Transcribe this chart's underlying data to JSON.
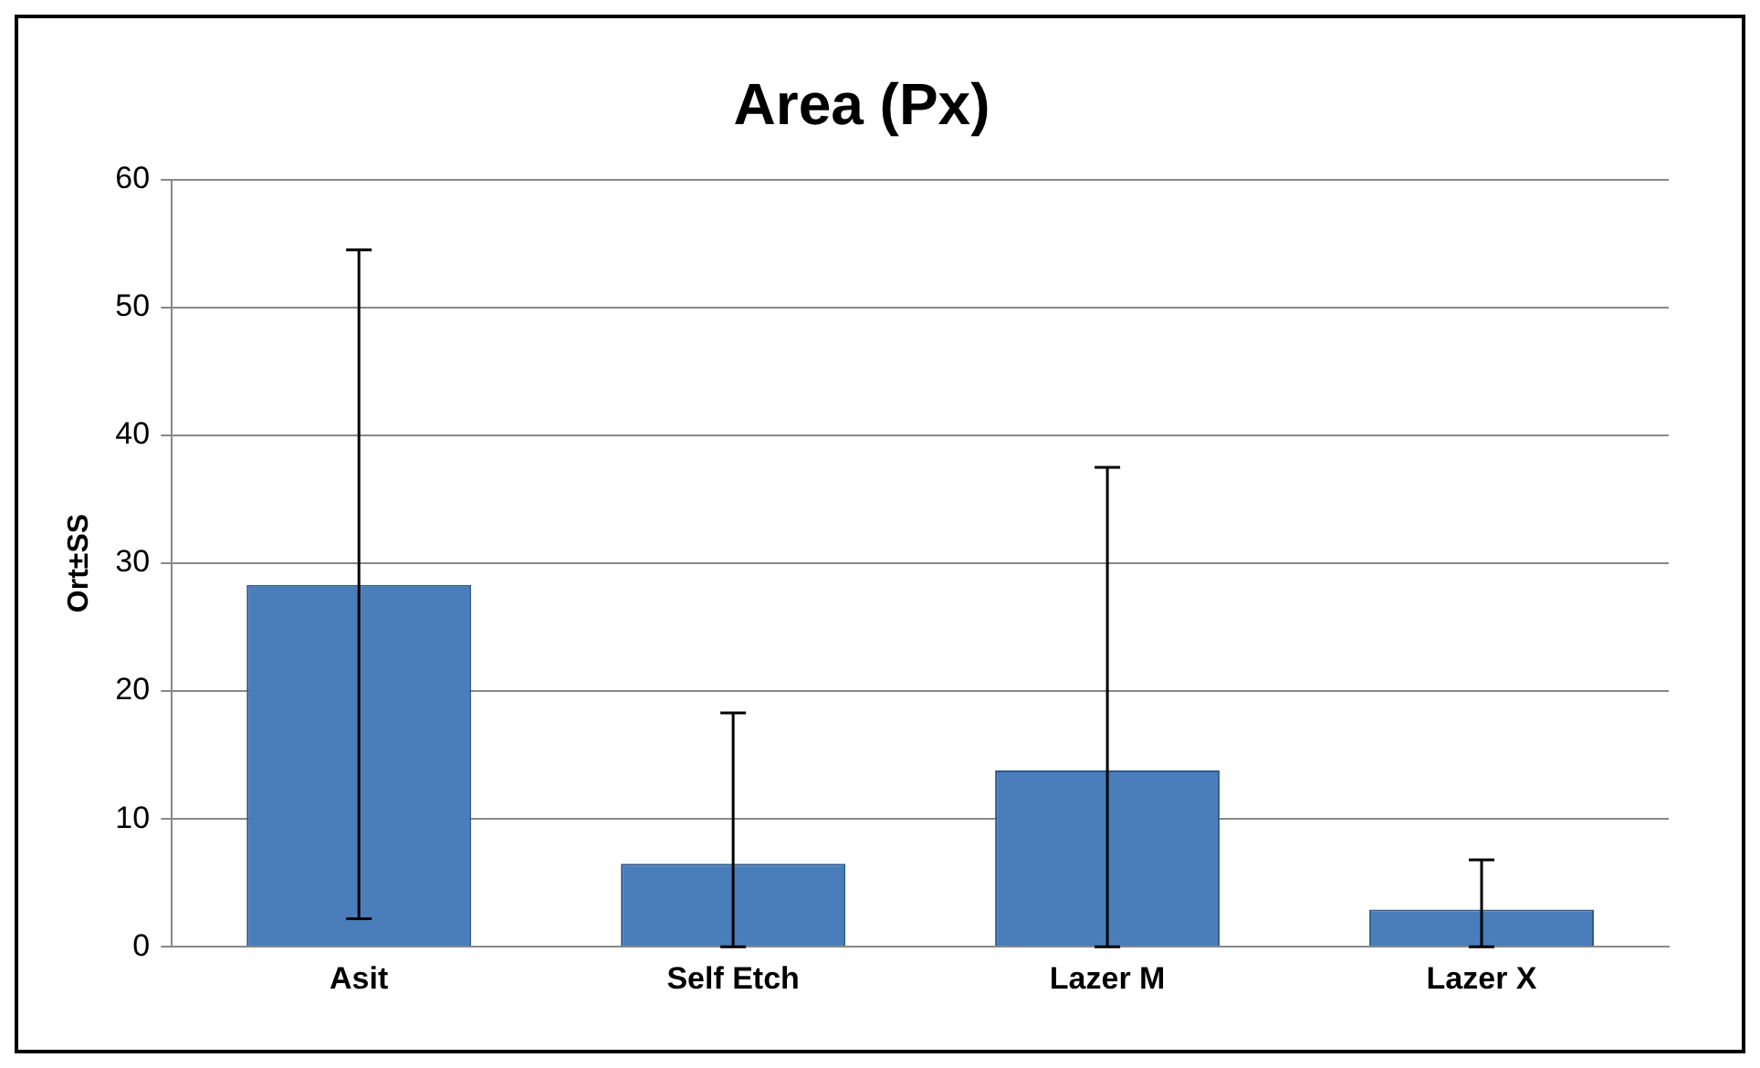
{
  "chart_data": {
    "type": "bar",
    "title": "Area (Px)",
    "ylabel": "Ort±SS",
    "categories": [
      "Asit",
      "Self Etch",
      "Lazer M",
      "Lazer X"
    ],
    "values": [
      28.3,
      6.5,
      13.8,
      2.9
    ],
    "color": "#4a7ebb",
    "errors": [
      [
        2.2,
        54.5
      ],
      [
        0,
        18.3
      ],
      [
        0,
        37.5
      ],
      [
        0,
        6.8
      ]
    ],
    "ylim": [
      0,
      60
    ],
    "yticks": [
      0,
      10,
      20,
      30,
      40,
      50,
      60
    ],
    "grid": "y",
    "legend": false
  }
}
